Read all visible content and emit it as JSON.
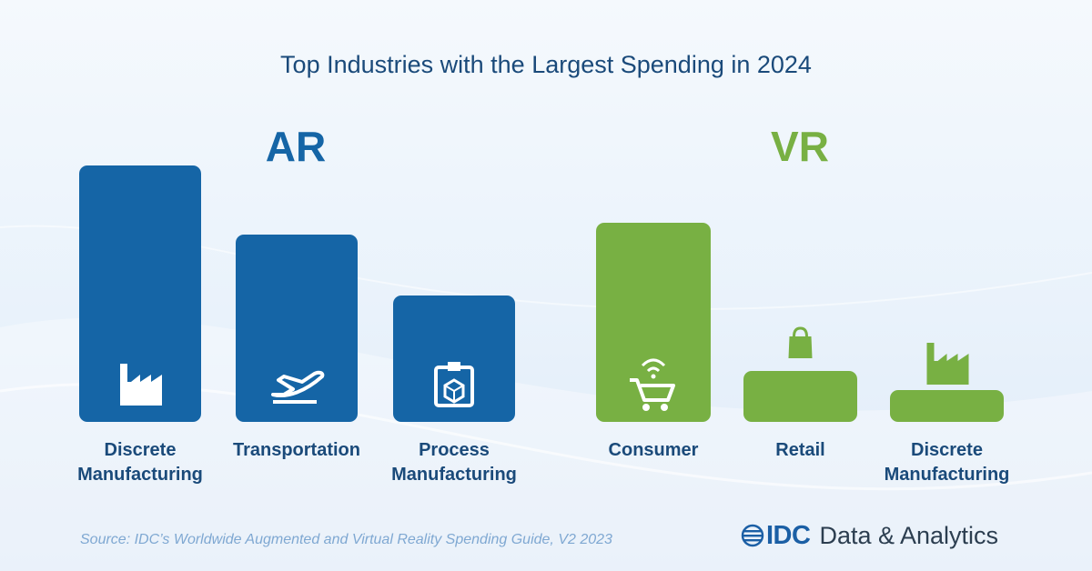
{
  "title": "Top Industries with the Largest Spending in 2024",
  "groups": [
    {
      "label": "AR",
      "color": "#1565a6"
    },
    {
      "label": "VR",
      "color": "#78b043"
    }
  ],
  "chart_data": {
    "type": "bar",
    "title": "Top Industries with the Largest Spending in 2024",
    "groups": [
      {
        "name": "AR",
        "color": "#1565a6",
        "categories": [
          "Discrete Manufacturing",
          "Transportation",
          "Process Manufacturing"
        ],
        "category_lines": [
          [
            "Discrete",
            "Manufacturing"
          ],
          [
            "Transportation"
          ],
          [
            "Process",
            "Manufacturing"
          ]
        ],
        "values": [
          282,
          206,
          139
        ],
        "icons": [
          "factory-icon",
          "airplane-icon",
          "process-icon"
        ]
      },
      {
        "name": "VR",
        "color": "#78b043",
        "categories": [
          "Consumer",
          "Retail",
          "Discrete Manufacturing"
        ],
        "category_lines": [
          [
            "Consumer"
          ],
          [
            "Retail"
          ],
          [
            "Discrete",
            "Manufacturing"
          ]
        ],
        "values": [
          219,
          56,
          35
        ],
        "icons": [
          "shopping-cart-icon",
          "shopping-bag-icon",
          "factory-icon"
        ]
      }
    ],
    "xlabel": "",
    "ylabel": "",
    "grid": false,
    "y_axis_shown": false
  },
  "source": "Source: IDC’s Worldwide Augmented and Virtual Reality Spending Guide, V2 2023",
  "logo": {
    "brand": "IDC",
    "text": "Data & Analytics"
  }
}
